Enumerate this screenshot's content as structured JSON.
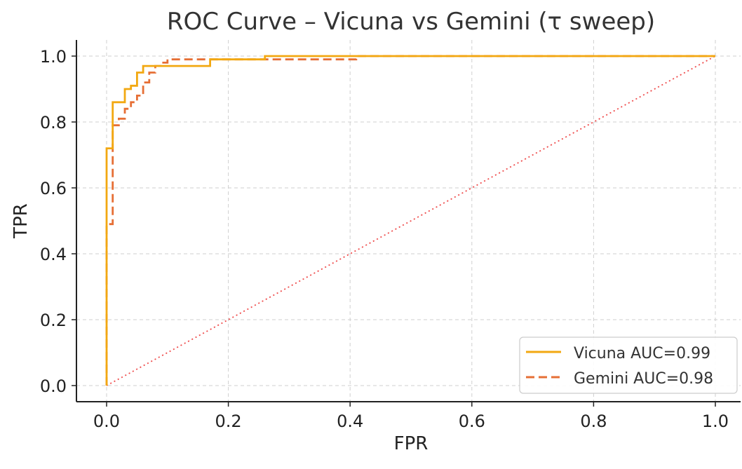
{
  "chart_data": {
    "type": "line",
    "title": "ROC Curve – Vicuna vs Gemini (τ sweep)",
    "xlabel": "FPR",
    "ylabel": "TPR",
    "xlim": [
      0.0,
      1.0
    ],
    "ylim": [
      0.0,
      1.0
    ],
    "xticks": [
      "0.0",
      "0.2",
      "0.4",
      "0.6",
      "0.8",
      "1.0"
    ],
    "yticks": [
      "0.0",
      "0.2",
      "0.4",
      "0.6",
      "0.8",
      "1.0"
    ],
    "grid": true,
    "legend_position": "bottom-right",
    "series": [
      {
        "name": "Vicuna",
        "label": "Vicuna  AUC=0.99",
        "auc": 0.99,
        "color": "#f2a811",
        "style": "solid",
        "points": [
          [
            0,
            0
          ],
          [
            0,
            0.72
          ],
          [
            0.01,
            0.72
          ],
          [
            0.01,
            0.86
          ],
          [
            0.03,
            0.86
          ],
          [
            0.03,
            0.9
          ],
          [
            0.04,
            0.9
          ],
          [
            0.04,
            0.91
          ],
          [
            0.05,
            0.91
          ],
          [
            0.05,
            0.95
          ],
          [
            0.06,
            0.95
          ],
          [
            0.06,
            0.97
          ],
          [
            0.17,
            0.97
          ],
          [
            0.17,
            0.99
          ],
          [
            0.26,
            0.99
          ],
          [
            0.26,
            1.0
          ],
          [
            1.0,
            1.0
          ]
        ]
      },
      {
        "name": "Gemini",
        "label": "Gemini  AUC=0.98",
        "auc": 0.98,
        "color": "#e66f35",
        "style": "dashed",
        "points": [
          [
            0,
            0
          ],
          [
            0,
            0.49
          ],
          [
            0.01,
            0.49
          ],
          [
            0.01,
            0.79
          ],
          [
            0.02,
            0.79
          ],
          [
            0.02,
            0.81
          ],
          [
            0.03,
            0.81
          ],
          [
            0.03,
            0.84
          ],
          [
            0.04,
            0.84
          ],
          [
            0.04,
            0.86
          ],
          [
            0.05,
            0.86
          ],
          [
            0.05,
            0.88
          ],
          [
            0.06,
            0.88
          ],
          [
            0.06,
            0.92
          ],
          [
            0.07,
            0.92
          ],
          [
            0.07,
            0.95
          ],
          [
            0.08,
            0.95
          ],
          [
            0.08,
            0.97
          ],
          [
            0.09,
            0.97
          ],
          [
            0.09,
            0.98
          ],
          [
            0.1,
            0.98
          ],
          [
            0.1,
            0.99
          ],
          [
            0.41,
            0.99
          ],
          [
            0.41,
            1.0
          ],
          [
            1.0,
            1.0
          ]
        ]
      }
    ],
    "reference_line": {
      "name": "chance",
      "color": "#ef4b4b",
      "style": "dotted",
      "points": [
        [
          0,
          0
        ],
        [
          1,
          1
        ]
      ]
    }
  }
}
